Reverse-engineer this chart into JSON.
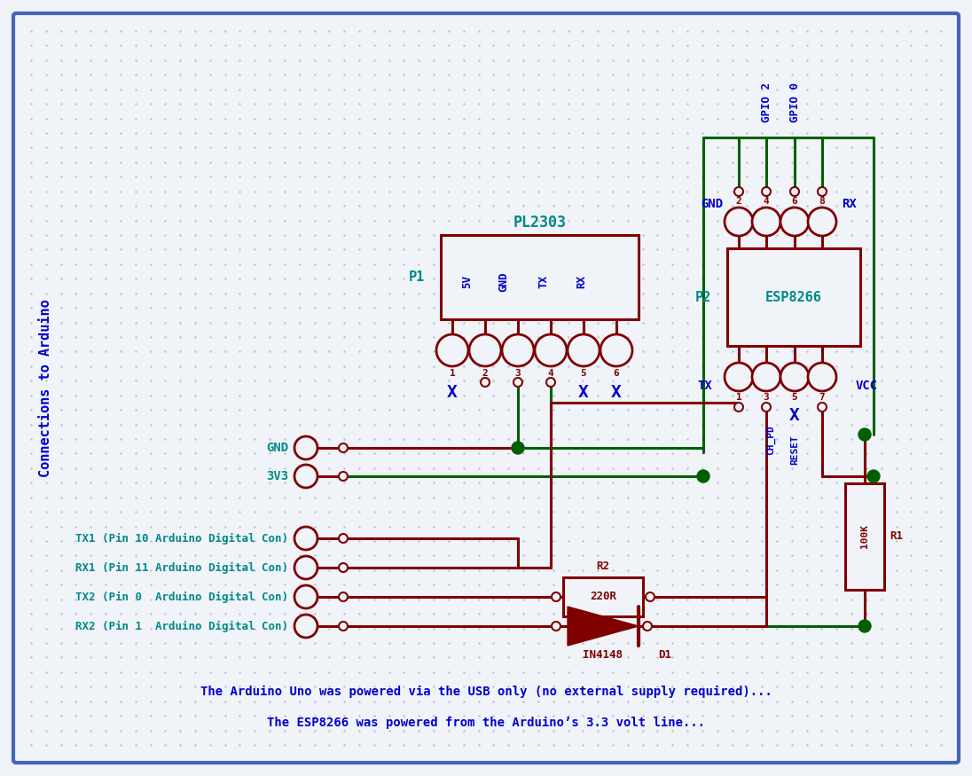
{
  "bg_color": "#f0f4f8",
  "border_color": "#4466bb",
  "dot_color": "#c0c8d8",
  "dark_red": "#800000",
  "green": "#006000",
  "blue": "#0000cc",
  "cyan": "#008888",
  "title_text": "Connections to Arduino",
  "note1": "The Arduino Uno was powered via the USB only (no external supply required)...",
  "note2": "The ESP8266 was powered from the Arduino’s 3.3 volt line...",
  "pl2303_label": "PL2303",
  "esp8266_label": "ESP8266",
  "p1_label": "P1",
  "p2_label": "P2",
  "r1_label": "R1",
  "r2_label": "R2",
  "resistor_val": "100K",
  "resistor2_val": "220R",
  "diode_label": "IN4148",
  "d1_label": "D1",
  "gnd_label": "GND",
  "vcc_label": "VCC",
  "tx_label": "TX",
  "rx_label": "RX",
  "3v3_label": "3V3",
  "gnd2_label": "GND",
  "reset_label": "RESET",
  "chpd_label": "CH_PD",
  "gpio2_label": "GPIO 2",
  "gpio0_label": "GPIO 0",
  "tx1_label": "TX1 (Pin 10 Arduino Digital Con)",
  "rx1_label": "RX1 (Pin 11 Arduino Digital Con)",
  "tx2_label": "TX2 (Pin 0  Arduino Digital Con)",
  "rx2_label": "RX2 (Pin 1  Arduino Digital Con)"
}
